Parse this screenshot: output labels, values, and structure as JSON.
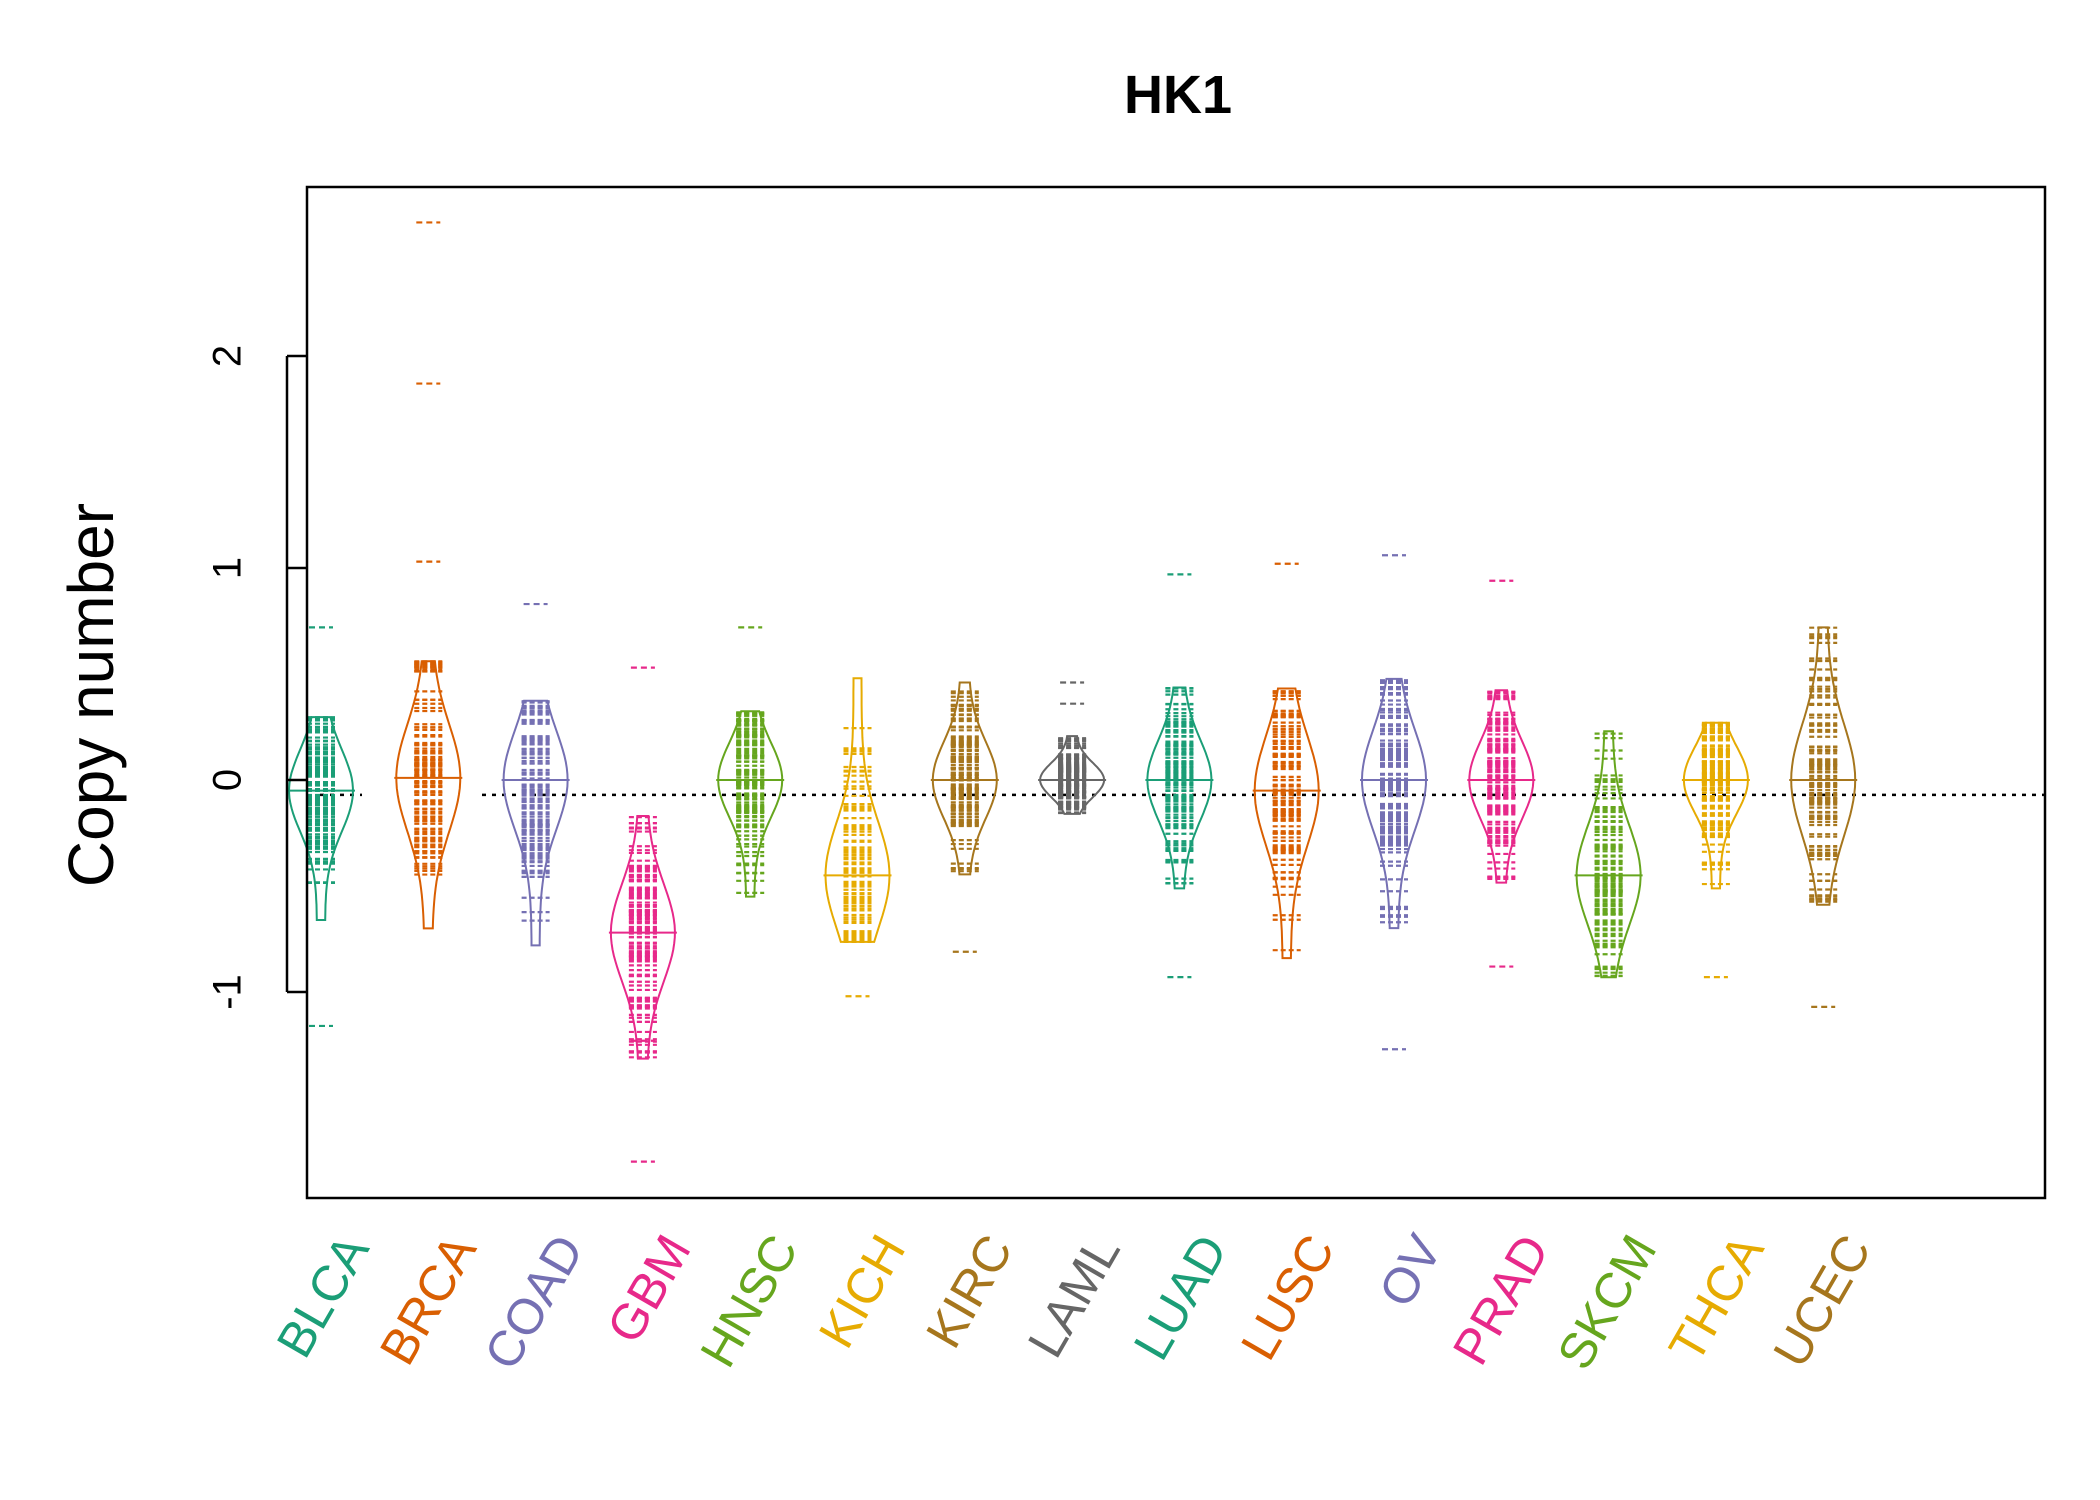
{
  "chart_data": {
    "type": "beanplot",
    "title": "HK1",
    "xlabel": "",
    "ylabel": "Copy number",
    "ylim": [
      -1.95,
      2.85
    ],
    "yticks": [
      -1,
      0,
      1,
      2
    ],
    "reference_line": -0.07,
    "grid": false,
    "legend": "none",
    "categories": [
      "BLCA",
      "BRCA",
      "COAD",
      "GBM",
      "HNSC",
      "KICH",
      "KIRC",
      "LAML",
      "LUAD",
      "LUSC",
      "OV",
      "PRAD",
      "SKCM",
      "THCA",
      "UCEC"
    ],
    "colors": [
      "#1b9e77",
      "#d95f02",
      "#7570b3",
      "#e7298a",
      "#66a61e",
      "#e6ab02",
      "#a6761d",
      "#666666",
      "#1b9e77",
      "#d95f02",
      "#7570b3",
      "#e7298a",
      "#66a61e",
      "#e6ab02",
      "#a6761d"
    ],
    "series": [
      {
        "category": "BLCA",
        "min": -1.16,
        "max": 0.72,
        "median": -0.05,
        "outliers": [
          0.72,
          -1.16
        ]
      },
      {
        "category": "BRCA",
        "min": -0.7,
        "max": 2.63,
        "median": 0.01,
        "outliers": [
          2.63,
          1.87,
          1.03
        ]
      },
      {
        "category": "COAD",
        "min": -0.78,
        "max": 0.83,
        "median": 0.0,
        "outliers": [
          0.83
        ]
      },
      {
        "category": "GBM",
        "min": -1.8,
        "max": 0.53,
        "median": -0.72,
        "outliers": [
          0.53,
          -1.23,
          -1.8
        ]
      },
      {
        "category": "HNSC",
        "min": -0.55,
        "max": 0.72,
        "median": 0.0,
        "outliers": [
          0.72
        ]
      },
      {
        "category": "KICH",
        "min": -1.02,
        "max": 0.48,
        "median": -0.45,
        "outliers": [
          -1.02
        ]
      },
      {
        "category": "KIRC",
        "min": -0.81,
        "max": 0.46,
        "median": 0.0,
        "outliers": [
          -0.81
        ]
      },
      {
        "category": "LAML",
        "min": -0.16,
        "max": 0.46,
        "median": 0.0,
        "outliers": [
          0.46,
          0.36
        ]
      },
      {
        "category": "LUAD",
        "min": -0.93,
        "max": 0.97,
        "median": 0.0,
        "outliers": [
          0.97,
          -0.93
        ]
      },
      {
        "category": "LUSC",
        "min": -0.84,
        "max": 1.02,
        "median": -0.05,
        "outliers": [
          1.02
        ]
      },
      {
        "category": "OV",
        "min": -1.27,
        "max": 1.06,
        "median": 0.0,
        "outliers": [
          1.06,
          -1.27
        ]
      },
      {
        "category": "PRAD",
        "min": -0.88,
        "max": 0.94,
        "median": 0.0,
        "outliers": [
          0.94,
          -0.88
        ]
      },
      {
        "category": "SKCM",
        "min": -0.93,
        "max": 0.23,
        "median": -0.45,
        "outliers": []
      },
      {
        "category": "THCA",
        "min": -0.93,
        "max": 0.27,
        "median": 0.0,
        "outliers": [
          -0.93
        ]
      },
      {
        "category": "UCEC",
        "min": -1.07,
        "max": 0.72,
        "median": 0.0,
        "outliers": [
          -1.07
        ]
      }
    ]
  }
}
